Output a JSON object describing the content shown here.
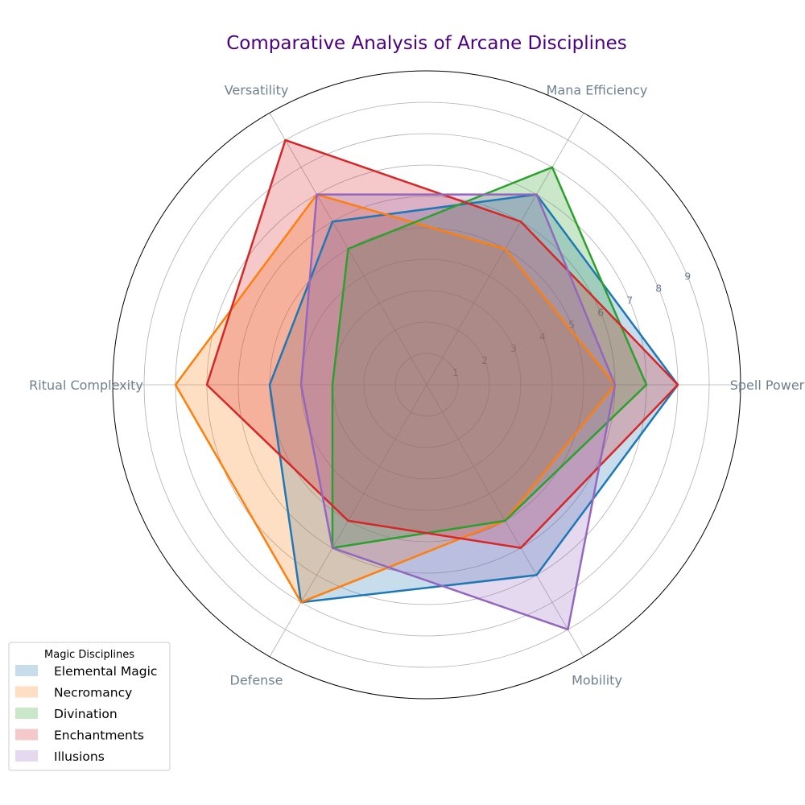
{
  "chart_data": {
    "type": "radar",
    "title": "Comparative Analysis of Arcane Disciplines",
    "axes": [
      "Spell Power",
      "Mana Efficiency",
      "Versatility",
      "Ritual Complexity",
      "Defense",
      "Mobility"
    ],
    "rlim": [
      0,
      10
    ],
    "rticks": [
      1,
      2,
      3,
      4,
      5,
      6,
      7,
      8,
      9
    ],
    "grid": true,
    "legend": {
      "title": "Magic Disciplines",
      "placement": "bottom-left"
    },
    "series": [
      {
        "name": "Elemental Magic",
        "color": "#1f77b4",
        "values": [
          8,
          7,
          6,
          5,
          8,
          7
        ]
      },
      {
        "name": "Necromancy",
        "color": "#ff7f0e",
        "values": [
          6,
          5,
          7,
          8,
          8,
          5
        ]
      },
      {
        "name": "Divination",
        "color": "#2ca02c",
        "values": [
          7,
          8,
          5,
          3,
          6,
          5
        ]
      },
      {
        "name": "Enchantments",
        "color": "#d62728",
        "values": [
          8,
          6,
          9,
          7,
          5,
          6
        ]
      },
      {
        "name": "Illusions",
        "color": "#9467bd",
        "values": [
          6,
          7,
          7,
          4,
          6,
          9
        ]
      }
    ]
  }
}
